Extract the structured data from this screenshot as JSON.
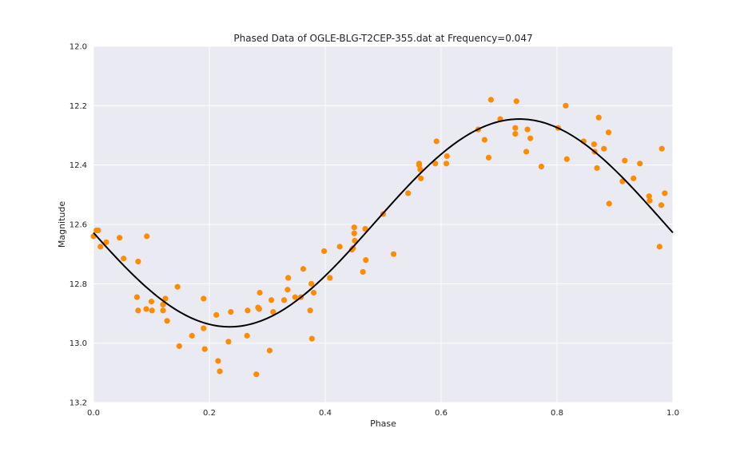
{
  "chart_data": {
    "type": "scatter",
    "title": "Phased Data of OGLE-BLG-T2CEP-355.dat at Frequency=0.047",
    "xlabel": "Phase",
    "ylabel": "Magnitude",
    "xlim": [
      0.0,
      1.0
    ],
    "ylim": [
      13.2,
      12.0
    ],
    "y_inverted": true,
    "grid": true,
    "x_ticks": [
      0.0,
      0.2,
      0.4,
      0.6,
      0.8,
      1.0
    ],
    "x_tick_labels": [
      "0.0",
      "0.2",
      "0.4",
      "0.6",
      "0.8",
      "1.0"
    ],
    "y_ticks": [
      12.0,
      12.2,
      12.4,
      12.6,
      12.8,
      13.0,
      13.2
    ],
    "y_tick_labels": [
      "12.0",
      "12.2",
      "12.4",
      "12.6",
      "12.8",
      "13.0",
      "13.2"
    ],
    "colors": {
      "background": "#eaeaf2",
      "points": "#ff8c00",
      "fit": "#000000",
      "grid": "#ffffff"
    },
    "series": [
      {
        "kind": "scatter",
        "x": [
          0.0,
          0.005,
          0.008,
          0.012,
          0.022,
          0.045,
          0.052,
          0.075,
          0.077,
          0.077,
          0.091,
          0.092,
          0.1,
          0.101,
          0.12,
          0.12,
          0.124,
          0.127,
          0.145,
          0.148,
          0.17,
          0.19,
          0.19,
          0.192,
          0.212,
          0.215,
          0.218,
          0.233,
          0.237,
          0.265,
          0.266,
          0.281,
          0.284,
          0.286,
          0.287,
          0.304,
          0.307,
          0.31,
          0.329,
          0.335,
          0.336,
          0.348,
          0.358,
          0.362,
          0.374,
          0.376,
          0.377,
          0.38,
          0.398,
          0.408,
          0.425,
          0.446,
          0.448,
          0.45,
          0.45,
          0.451,
          0.465,
          0.469,
          0.47,
          0.5,
          0.518,
          0.543,
          0.562,
          0.562,
          0.564,
          0.565,
          0.59,
          0.592,
          0.609,
          0.61,
          0.664,
          0.675,
          0.682,
          0.686,
          0.702,
          0.728,
          0.728,
          0.73,
          0.747,
          0.749,
          0.754,
          0.773,
          0.802,
          0.815,
          0.817,
          0.846,
          0.864,
          0.865,
          0.869,
          0.872,
          0.881,
          0.889,
          0.89,
          0.913,
          0.917,
          0.932,
          0.943,
          0.959,
          0.96,
          0.977,
          0.98,
          0.981,
          0.986
        ],
        "y": [
          12.64,
          12.62,
          12.62,
          12.675,
          12.66,
          12.645,
          12.715,
          12.845,
          12.89,
          12.725,
          12.885,
          12.64,
          12.86,
          12.89,
          12.87,
          12.89,
          12.85,
          12.925,
          12.81,
          13.01,
          12.975,
          12.95,
          12.85,
          13.02,
          12.905,
          13.06,
          13.095,
          12.995,
          12.895,
          12.975,
          12.89,
          13.105,
          12.88,
          12.885,
          12.83,
          13.025,
          12.855,
          12.895,
          12.855,
          12.82,
          12.78,
          12.845,
          12.845,
          12.75,
          12.89,
          12.8,
          12.985,
          12.83,
          12.69,
          12.78,
          12.675,
          12.685,
          12.68,
          12.61,
          12.63,
          12.655,
          12.76,
          12.615,
          12.72,
          12.565,
          12.7,
          12.495,
          12.4,
          12.395,
          12.415,
          12.445,
          12.395,
          12.32,
          12.395,
          12.37,
          12.28,
          12.315,
          12.375,
          12.18,
          12.245,
          12.275,
          12.295,
          12.185,
          12.355,
          12.28,
          12.31,
          12.405,
          12.275,
          12.2,
          12.38,
          12.32,
          12.33,
          12.355,
          12.41,
          12.24,
          12.345,
          12.29,
          12.53,
          12.455,
          12.385,
          12.445,
          12.395,
          12.505,
          12.52,
          12.675,
          12.535,
          12.345,
          12.495
        ]
      },
      {
        "kind": "line",
        "model": "sinusoid",
        "x_range": [
          0.0,
          1.0
        ],
        "mean": 12.595,
        "amplitude": 0.35,
        "phase_of_minimum_magnitude": 0.735
      }
    ]
  }
}
